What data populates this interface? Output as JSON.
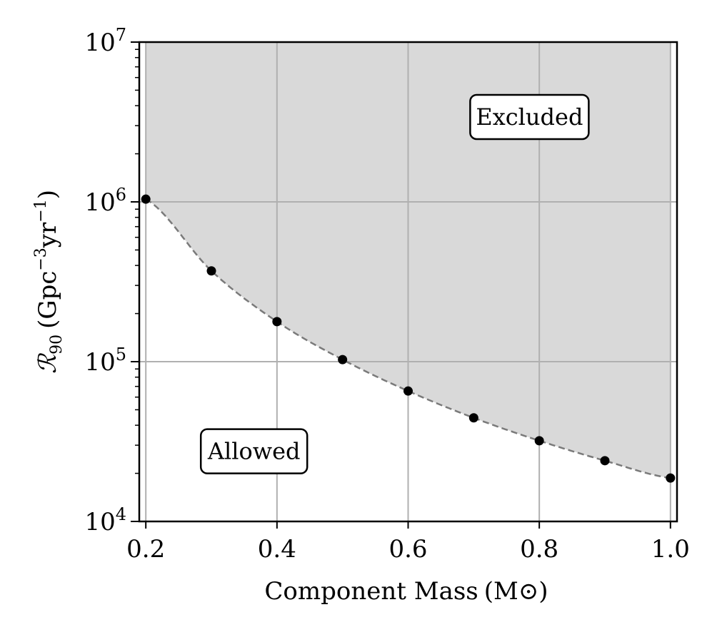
{
  "chart_data": {
    "type": "scatter",
    "title": "",
    "xlabel": "Component Mass",
    "xlabel_unit": "(M⊙)",
    "ylabel": "ℛ",
    "ylabel_subscript": "90",
    "ylabel_unit": "(Gpc",
    "ylabel_exp1": "−3",
    "ylabel_unit2": "yr",
    "ylabel_exp2": "−1",
    "ylabel_close": ")",
    "xlim": [
      0.19,
      1.01
    ],
    "ylim": [
      10000,
      10000000
    ],
    "yscale": "log",
    "grid": true,
    "x_ticks": [
      "0.2",
      "0.4",
      "0.6",
      "0.8",
      "1.0"
    ],
    "y_ticks": [
      {
        "base": "10",
        "exp": "4"
      },
      {
        "base": "10",
        "exp": "5"
      },
      {
        "base": "10",
        "exp": "6"
      },
      {
        "base": "10",
        "exp": "7"
      }
    ],
    "x": [
      0.2,
      0.3,
      0.4,
      0.5,
      0.6,
      0.7,
      0.8,
      0.9,
      1.0
    ],
    "y": [
      1040000,
      370000,
      178000,
      103000,
      65500,
      44500,
      32000,
      24000,
      18700
    ],
    "marker_color": "#000000",
    "curve_color": "#7a7a7a",
    "excluded_fill": "#d9d9d9",
    "annotations": [
      {
        "text": "Excluded",
        "x": 0.785,
        "y": 3400000
      },
      {
        "text": "Allowed",
        "x": 0.365,
        "y": 27500
      }
    ]
  }
}
